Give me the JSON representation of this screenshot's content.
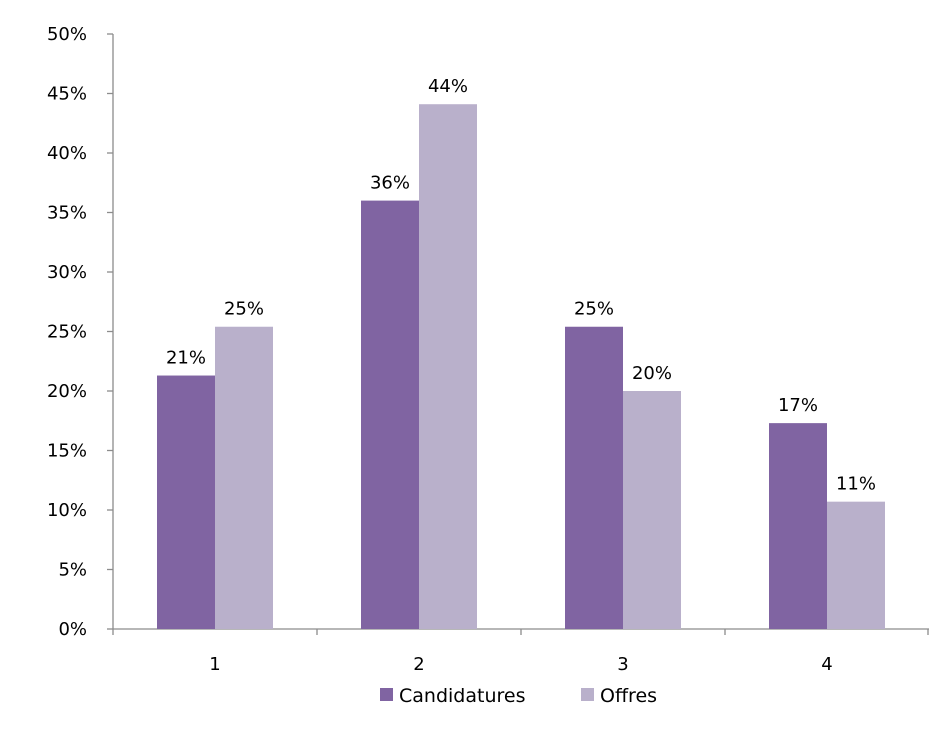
{
  "chart_data": {
    "type": "bar",
    "categories": [
      "1",
      "2",
      "3",
      "4"
    ],
    "series": [
      {
        "name": "Candidatures",
        "color": "#8064a2",
        "values": [
          21.3,
          36.0,
          25.4,
          17.3
        ],
        "labels": [
          "21%",
          "36%",
          "25%",
          "17%"
        ]
      },
      {
        "name": "Offres",
        "color": "#b9b0cb",
        "values": [
          25.4,
          44.1,
          20.0,
          10.7
        ],
        "labels": [
          "25%",
          "44%",
          "20%",
          "11%"
        ]
      }
    ],
    "y_ticks": [
      0,
      5,
      10,
      15,
      20,
      25,
      30,
      35,
      40,
      45,
      50
    ],
    "y_tick_labels": [
      "0%",
      "5%",
      "10%",
      "15%",
      "20%",
      "25%",
      "30%",
      "35%",
      "40%",
      "45%",
      "50%"
    ],
    "ylim": [
      0,
      50
    ],
    "grid": false,
    "legend_position": "bottom",
    "title": "",
    "xlabel": "",
    "ylabel": ""
  }
}
